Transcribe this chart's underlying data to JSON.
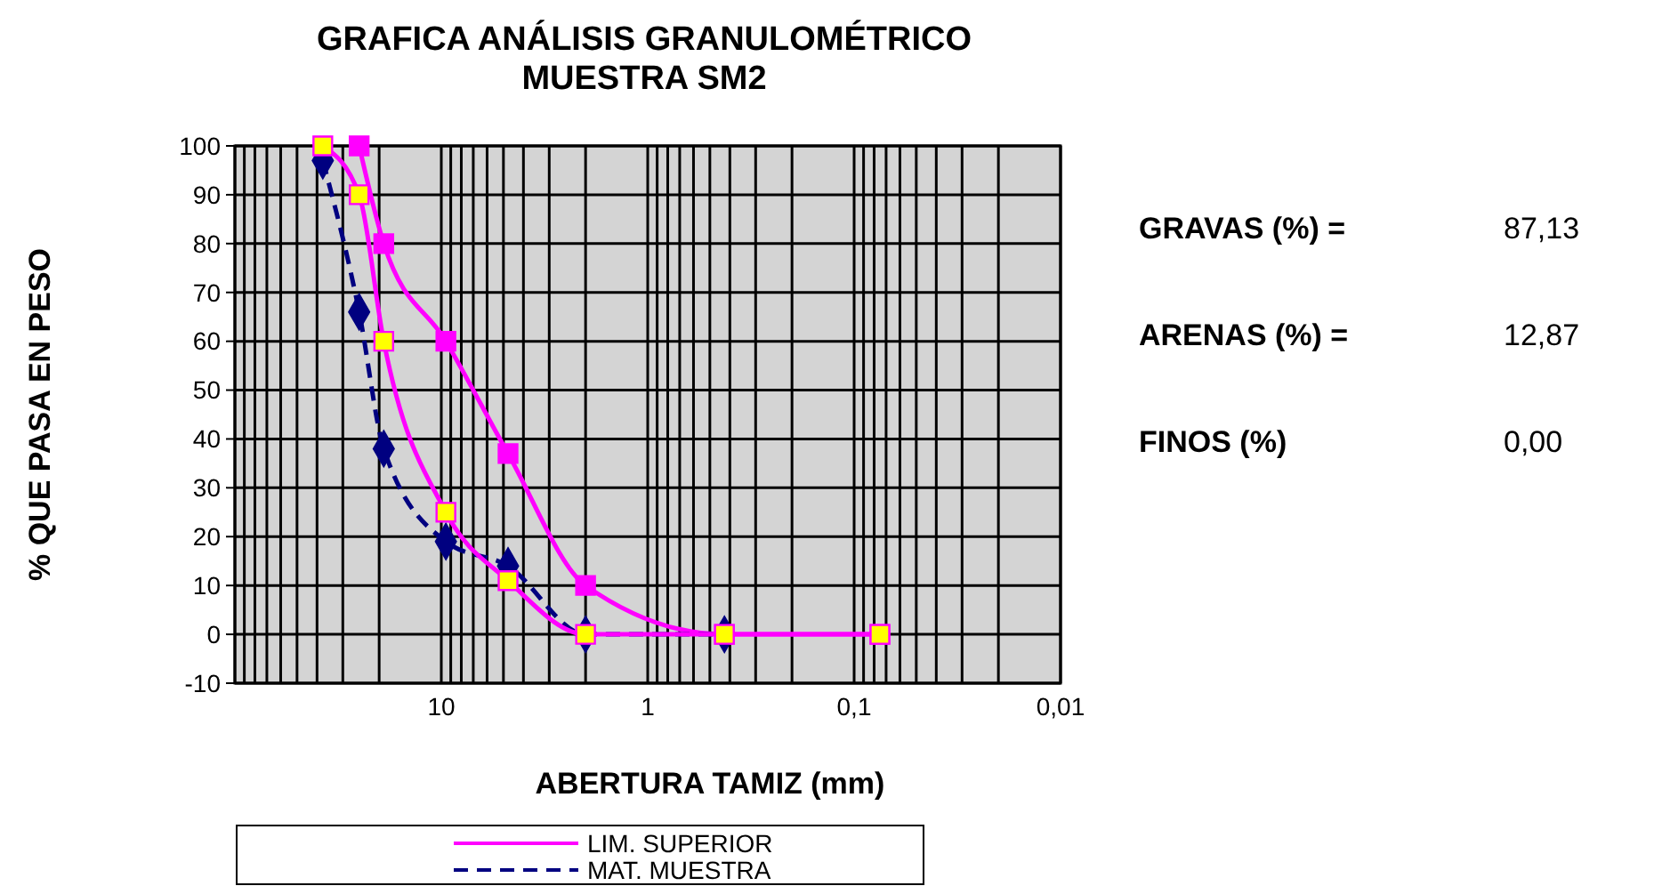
{
  "chart_data": {
    "type": "line",
    "title": "GRAFICA ANÁLISIS GRANULOMÉTRICO",
    "subtitle": "MUESTRA SM2",
    "xlabel": "ABERTURA  TAMIZ (mm)",
    "ylabel": "% QUE PASA EN PESO",
    "annotations": [
      "GRAVAS (%) =",
      "87,13",
      "ARENAS (%) =",
      "12,87",
      "FINOS (%)",
      "0,00"
    ],
    "log": "x",
    "xlim": [
      100,
      0.01
    ],
    "ylim": [
      -10,
      100
    ],
    "xticks": [
      {
        "value": 100,
        "label": null
      },
      {
        "value": 90,
        "label": null
      },
      {
        "value": 80,
        "label": null
      },
      {
        "value": 70,
        "label": null
      },
      {
        "value": 60,
        "label": null
      },
      {
        "value": 50,
        "label": null
      },
      {
        "value": 40,
        "label": null
      },
      {
        "value": 30,
        "label": null
      },
      {
        "value": 20,
        "label": null
      },
      10,
      {
        "value": 9,
        "label": null
      },
      {
        "value": 8,
        "label": null
      },
      {
        "value": 7,
        "label": null
      },
      {
        "value": 6,
        "label": null
      },
      {
        "value": 5,
        "label": null
      },
      {
        "value": 4,
        "label": null
      },
      {
        "value": 3,
        "label": null
      },
      {
        "value": 2,
        "label": null
      },
      1,
      {
        "value": 0.9,
        "label": null
      },
      {
        "value": 0.8,
        "label": null
      },
      {
        "value": 0.7,
        "label": null
      },
      {
        "value": 0.6,
        "label": null
      },
      {
        "value": 0.5,
        "label": null
      },
      {
        "value": 0.4,
        "label": null
      },
      {
        "value": 0.3,
        "label": null
      },
      {
        "value": 0.2,
        "label": null
      },
      {
        "value": 0.1,
        "label": "0,1"
      },
      {
        "value": 0.09,
        "label": null
      },
      {
        "value": 0.08,
        "label": null
      },
      {
        "value": 0.07,
        "label": null
      },
      {
        "value": 0.06,
        "label": null
      },
      {
        "value": 0.05,
        "label": null
      },
      {
        "value": 0.04,
        "label": null
      },
      {
        "value": 0.03,
        "label": null
      },
      {
        "value": 0.02,
        "label": null
      },
      {
        "value": 0.01,
        "label": "0,01"
      }
    ],
    "yticks": [
      -10,
      0,
      10,
      20,
      30,
      40,
      50,
      60,
      70,
      80,
      90,
      100
    ],
    "grid": true,
    "legend": "bottom",
    "series": [
      {
        "name": "LIM. SUPERIOR",
        "color": "#ff00ff",
        "marker": "square",
        "line_style": "solid",
        "x": [
          25,
          19,
          9.5,
          4.75,
          2,
          0.425,
          0.075
        ],
        "values": [
          100,
          80,
          60,
          37,
          10,
          0,
          0
        ]
      },
      {
        "name": "MAT. MUESTRA",
        "color": "#000080",
        "marker": "diamond",
        "line_style": "dashed",
        "x": [
          37.5,
          25,
          19,
          9.5,
          4.75,
          2,
          0.425
        ],
        "values": [
          97,
          66,
          38,
          19,
          14,
          0,
          0
        ]
      },
      {
        "color": "#ff00ff",
        "colors": [
          "#ffff00",
          "#ffff00",
          "#ffff00",
          "#ffff00",
          "#ffff00",
          "#ffff00",
          "#ffff00",
          "#ffff00"
        ],
        "marker": "square",
        "line_style": "solid",
        "x": [
          37.5,
          25,
          19,
          9.5,
          4.75,
          2,
          0.425,
          0.075
        ],
        "values": [
          100,
          90,
          60,
          25,
          11,
          0,
          0,
          0
        ]
      }
    ]
  }
}
